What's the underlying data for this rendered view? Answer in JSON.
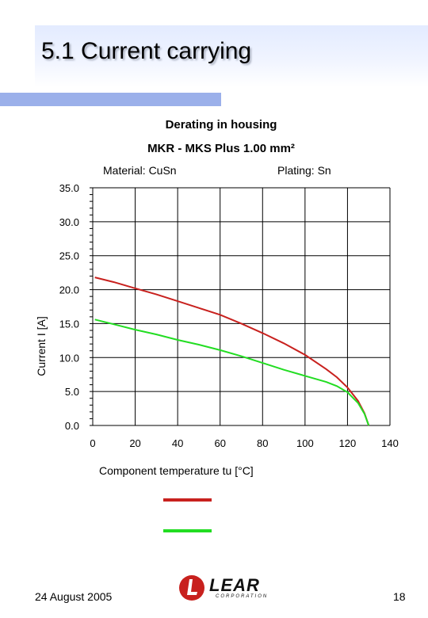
{
  "slide": {
    "title": "5.1 Current carrying",
    "footer_date": "24 August 2005",
    "page_number": "18",
    "logo": {
      "name": "LEAR",
      "subtitle": "CORPORATION"
    },
    "colors": {
      "title_band": "#e3ebff",
      "accent_bar": "#9bb0ea"
    }
  },
  "chart_data": {
    "type": "line",
    "title": "Derating in housing",
    "subtitle": "MKR - MKS  Plus 1.00 mm²",
    "annotations": {
      "material": "Material: CuSn",
      "plating": "Plating: Sn"
    },
    "xlabel": "Component temperature tu [°C]",
    "ylabel": "Current I [A]",
    "xlim": [
      0,
      140
    ],
    "ylim": [
      0,
      35
    ],
    "x_ticks": [
      "0",
      "20",
      "40",
      "60",
      "80",
      "100",
      "120",
      "140"
    ],
    "y_ticks": [
      "0.0",
      "5.0",
      "10.0",
      "15.0",
      "20.0",
      "25.0",
      "30.0",
      "35.0"
    ],
    "grid": true,
    "legend": "bottom, lines without labels",
    "series": [
      {
        "color": "#c8211e",
        "x": [
          1,
          10,
          20,
          30,
          40,
          50,
          60,
          70,
          80,
          90,
          100,
          110,
          115,
          120,
          125,
          128,
          130
        ],
        "y": [
          21.8,
          21.1,
          20.2,
          19.3,
          18.3,
          17.3,
          16.3,
          15.0,
          13.6,
          12.1,
          10.4,
          8.3,
          7.1,
          5.6,
          3.6,
          1.8,
          0.0
        ]
      },
      {
        "color": "#22dd22",
        "x": [
          1,
          10,
          20,
          30,
          40,
          50,
          60,
          70,
          80,
          90,
          100,
          110,
          115,
          120,
          125,
          128,
          130
        ],
        "y": [
          15.6,
          14.9,
          14.1,
          13.4,
          12.6,
          11.9,
          11.1,
          10.2,
          9.2,
          8.2,
          7.3,
          6.4,
          5.8,
          4.9,
          3.3,
          1.7,
          0.0
        ]
      }
    ]
  }
}
